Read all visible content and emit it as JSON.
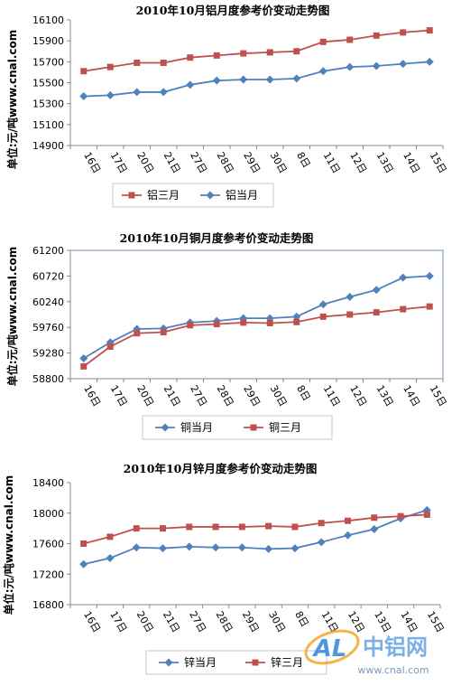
{
  "chart_data": [
    {
      "type": "line",
      "title": "2010年10月铝月度参考价变动走势图",
      "ylabel": "单位:元/吨www.cnal.com",
      "categories": [
        "16日",
        "17日",
        "20日",
        "21日",
        "27日",
        "28日",
        "29日",
        "30日",
        "8日",
        "11日",
        "12日",
        "13日",
        "14日",
        "15日"
      ],
      "ylim": [
        14900,
        16100
      ],
      "yticks": [
        14900,
        15100,
        15300,
        15500,
        15700,
        15900,
        16100
      ],
      "grid": false,
      "legend_position": "bottom",
      "series": [
        {
          "name": "铝三月",
          "color": "#C0504D",
          "marker": "square",
          "values": [
            15610,
            15650,
            15690,
            15690,
            15740,
            15760,
            15780,
            15790,
            15800,
            15890,
            15910,
            15950,
            15980,
            16000
          ]
        },
        {
          "name": "铝当月",
          "color": "#4F81BD",
          "marker": "diamond",
          "values": [
            15370,
            15380,
            15410,
            15410,
            15480,
            15520,
            15530,
            15530,
            15540,
            15610,
            15650,
            15660,
            15680,
            15700
          ]
        }
      ]
    },
    {
      "type": "line",
      "title": "2010年10月铜月度参考价变动走势图",
      "ylabel": "单位:元/吨www.cnal.com",
      "categories": [
        "16日",
        "17日",
        "20日",
        "21日",
        "27日",
        "28日",
        "29日",
        "30日",
        "8日",
        "11日",
        "12日",
        "13日",
        "14日",
        "15日"
      ],
      "ylim": [
        58800,
        61200
      ],
      "yticks": [
        58800,
        59280,
        59760,
        60240,
        60720,
        61200
      ],
      "grid": false,
      "legend_position": "bottom",
      "series": [
        {
          "name": "铜当月",
          "color": "#4F81BD",
          "marker": "diamond",
          "values": [
            59180,
            59480,
            59730,
            59740,
            59850,
            59880,
            59930,
            59930,
            59960,
            60190,
            60330,
            60460,
            60690,
            60720
          ]
        },
        {
          "name": "铜三月",
          "color": "#C0504D",
          "marker": "square",
          "values": [
            59030,
            59400,
            59650,
            59670,
            59800,
            59820,
            59850,
            59840,
            59860,
            59960,
            60000,
            60040,
            60100,
            60150
          ]
        }
      ]
    },
    {
      "type": "line",
      "title": "2010年10月锌月度参考价变动走势图",
      "ylabel": "单位:元/吨www.cnal.com",
      "categories": [
        "16日",
        "17日",
        "20日",
        "21日",
        "27日",
        "28日",
        "29日",
        "30日",
        "8日",
        "11日",
        "12日",
        "13日",
        "14日",
        "15日"
      ],
      "ylim": [
        16800,
        18400
      ],
      "yticks": [
        16800,
        17200,
        17600,
        18000,
        18400
      ],
      "grid": false,
      "legend_position": "bottom",
      "series": [
        {
          "name": "锌当月",
          "color": "#4F81BD",
          "marker": "diamond",
          "values": [
            17330,
            17410,
            17550,
            17540,
            17560,
            17550,
            17550,
            17530,
            17540,
            17620,
            17710,
            17790,
            17930,
            18040
          ]
        },
        {
          "name": "锌三月",
          "color": "#C0504D",
          "marker": "square",
          "values": [
            17600,
            17690,
            17800,
            17800,
            17820,
            17820,
            17820,
            17830,
            17820,
            17870,
            17900,
            17940,
            17960,
            17980
          ]
        }
      ]
    }
  ],
  "watermark": {
    "logo_text": "AL",
    "brand": "中铝网",
    "url": "www.cnal.com"
  }
}
